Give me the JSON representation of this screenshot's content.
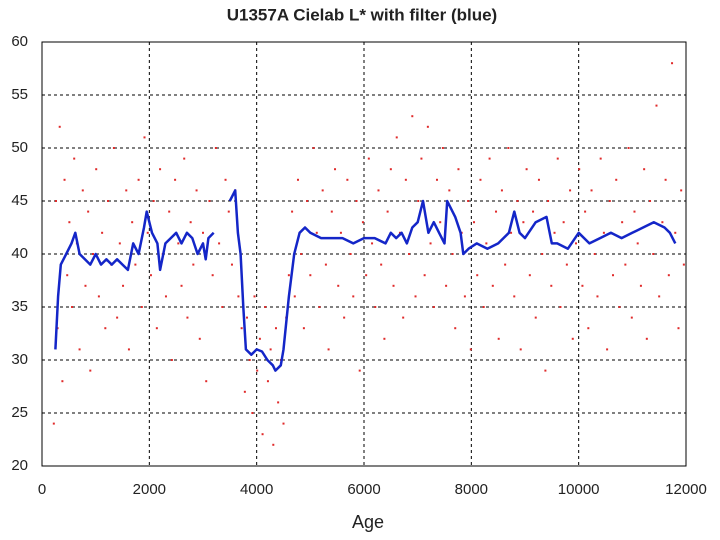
{
  "chart_data": {
    "type": "scatter",
    "title": "U1357A Cielab L* with filter (blue)",
    "xlabel": "Age",
    "xlim": [
      0,
      12000
    ],
    "ylim": [
      20,
      60
    ],
    "xticks": [
      0,
      2000,
      4000,
      6000,
      8000,
      10000,
      12000
    ],
    "yticks": [
      20,
      25,
      30,
      35,
      40,
      45,
      50,
      55,
      60
    ],
    "grid": true,
    "series": [
      {
        "type": "scatter",
        "color": "#e02a2a",
        "x": [
          220,
          260,
          290,
          330,
          380,
          420,
          470,
          510,
          560,
          600,
          650,
          700,
          760,
          810,
          860,
          900,
          950,
          1010,
          1060,
          1120,
          1180,
          1230,
          1290,
          1340,
          1400,
          1450,
          1510,
          1570,
          1620,
          1680,
          1740,
          1800,
          1860,
          1910,
          1970,
          2030,
          2080,
          2140,
          2200,
          2250,
          2310,
          2370,
          2420,
          2480,
          2540,
          2600,
          2650,
          2710,
          2770,
          2820,
          2880,
          2940,
          3000,
          3060,
          3120,
          3180,
          3240,
          3300,
          3360,
          3420,
          3480,
          3540,
          3600,
          3660,
          3720,
          3780,
          3820,
          3870,
          3920,
          3960,
          4010,
          4060,
          4110,
          4160,
          4210,
          4260,
          4310,
          4360,
          4400,
          4450,
          4500,
          4550,
          4600,
          4660,
          4710,
          4770,
          4830,
          4880,
          4940,
          5000,
          5060,
          5120,
          5170,
          5230,
          5290,
          5340,
          5400,
          5460,
          5520,
          5570,
          5630,
          5690,
          5750,
          5800,
          5860,
          5920,
          5980,
          6040,
          6090,
          6150,
          6210,
          6270,
          6320,
          6380,
          6440,
          6500,
          6550,
          6610,
          6670,
          6730,
          6780,
          6840,
          6900,
          6960,
          7010,
          7070,
          7130,
          7190,
          7240,
          7300,
          7360,
          7420,
          7470,
          7530,
          7590,
          7650,
          7700,
          7760,
          7820,
          7880,
          7940,
          7990,
          8050,
          8110,
          8170,
          8230,
          8280,
          8340,
          8400,
          8460,
          8510,
          8570,
          8630,
          8690,
          8740,
          8800,
          8860,
          8920,
          8970,
          9030,
          9090,
          9150,
          9200,
          9260,
          9320,
          9380,
          9430,
          9490,
          9550,
          9610,
          9660,
          9720,
          9780,
          9840,
          9890,
          9950,
          10010,
          10070,
          10120,
          10180,
          10240,
          10300,
          10350,
          10410,
          10470,
          10530,
          10580,
          10640,
          10700,
          10760,
          10810,
          10870,
          10930,
          10990,
          11040,
          11100,
          11160,
          11220,
          11270,
          11330,
          11390,
          11450,
          11500,
          11560,
          11620,
          11680,
          11740,
          11800,
          11860,
          11910,
          11960
        ],
        "values": [
          24,
          45,
          33,
          52,
          28,
          47,
          38,
          43,
          35,
          49,
          41,
          31,
          46,
          37,
          44,
          29,
          40,
          48,
          36,
          42,
          33,
          45,
          39,
          50,
          34,
          41,
          37,
          46,
          31,
          43,
          39,
          47,
          35,
          51,
          42,
          38,
          45,
          33,
          48,
          40,
          36,
          44,
          30,
          47,
          41,
          37,
          49,
          34,
          43,
          39,
          46,
          32,
          42,
          28,
          45,
          38,
          50,
          41,
          35,
          47,
          44,
          39,
          46,
          36,
          33,
          27,
          34,
          30,
          25,
          36,
          29,
          32,
          23,
          35,
          28,
          31,
          22,
          33,
          26,
          30,
          24,
          34,
          38,
          44,
          36,
          47,
          40,
          33,
          45,
          38,
          50,
          42,
          35,
          46,
          39,
          31,
          44,
          48,
          37,
          42,
          34,
          47,
          40,
          36,
          45,
          29,
          43,
          38,
          49,
          41,
          35,
          46,
          39,
          32,
          44,
          48,
          37,
          51,
          42,
          34,
          47,
          40,
          53,
          36,
          45,
          49,
          38,
          52,
          41,
          35,
          47,
          43,
          50,
          37,
          46,
          40,
          33,
          48,
          42,
          36,
          45,
          31,
          43,
          38,
          47,
          35,
          41,
          49,
          37,
          44,
          32,
          46,
          39,
          50,
          42,
          36,
          45,
          31,
          43,
          48,
          38,
          44,
          34,
          47,
          40,
          29,
          45,
          37,
          42,
          49,
          35,
          43,
          39,
          46,
          32,
          41,
          48,
          37,
          44,
          33,
          46,
          40,
          36,
          49,
          42,
          31,
          45,
          38,
          47,
          35,
          43,
          39,
          50,
          34,
          44,
          41,
          37,
          48,
          32,
          45,
          40,
          54,
          36,
          43,
          47,
          38,
          58,
          42,
          33,
          46,
          39
        ]
      },
      {
        "type": "line",
        "color": "#1426c8",
        "x": [
          250,
          300,
          350,
          450,
          550,
          620,
          700,
          800,
          900,
          1000,
          1100,
          1200,
          1300,
          1400,
          1500,
          1600,
          1700,
          1800,
          1900,
          1950,
          2050,
          2150,
          2200,
          2300,
          2400,
          2500,
          2600,
          2700,
          2800,
          2900,
          3000,
          3050,
          3100,
          3200,
          3300,
          3500,
          3600,
          3650,
          3700,
          3750,
          3800,
          3900,
          4000,
          4100,
          4200,
          4300,
          4350,
          4450,
          4500,
          4600,
          4700,
          4800,
          4900,
          5000,
          5200,
          5400,
          5600,
          5800,
          6000,
          6200,
          6400,
          6500,
          6600,
          6700,
          6800,
          6900,
          7000,
          7100,
          7200,
          7300,
          7400,
          7500,
          7550,
          7700,
          7800,
          7850,
          7950,
          8100,
          8300,
          8500,
          8600,
          8700,
          8800,
          8900,
          9000,
          9200,
          9400,
          9500,
          9600,
          9800,
          10000,
          10200,
          10400,
          10600,
          10800,
          11000,
          11200,
          11400,
          11600,
          11700,
          11800
        ],
        "values": [
          31,
          36,
          39,
          40,
          41,
          42,
          40,
          39.5,
          39,
          40,
          39,
          39.5,
          39,
          39.5,
          39,
          38.5,
          41,
          40,
          42.5,
          44,
          42,
          41,
          38.5,
          41,
          41.5,
          42,
          41,
          42,
          41.5,
          40,
          41,
          39.5,
          41.5,
          42,
          null,
          45,
          46,
          42,
          40,
          35,
          31,
          30.5,
          31,
          30.8,
          30,
          29.5,
          29,
          29.5,
          31,
          36,
          40,
          42,
          42.5,
          42,
          41.5,
          41.5,
          41.5,
          41,
          41.5,
          41.5,
          41,
          42,
          41.5,
          42,
          41,
          42.5,
          43,
          45,
          42,
          43,
          42,
          41,
          45,
          43.5,
          42,
          40,
          40.5,
          41,
          40.5,
          41,
          41.5,
          42,
          44,
          42,
          41.5,
          43,
          43.5,
          41,
          41,
          40.5,
          42,
          41,
          41.5,
          42,
          41.5,
          42,
          42.5,
          43,
          42.5,
          42,
          41
        ]
      }
    ]
  }
}
